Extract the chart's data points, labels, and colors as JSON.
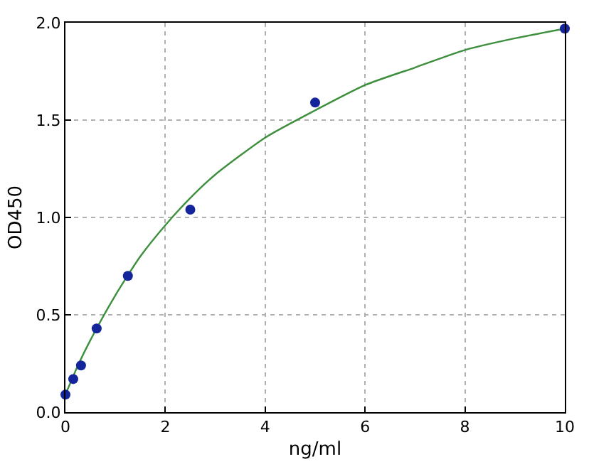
{
  "chart_data": {
    "type": "scatter",
    "xlabel": "ng/ml",
    "ylabel": "OD450",
    "xlim": [
      0,
      10
    ],
    "ylim": [
      0,
      2.0
    ],
    "xticks": [
      0,
      2,
      4,
      6,
      8,
      10
    ],
    "yticks": [
      {
        "value": 0,
        "label": "0.0"
      },
      0.5,
      {
        "value": 1,
        "label": "1.0"
      },
      1.5,
      {
        "value": 2,
        "label": "2.0"
      }
    ],
    "grid": true,
    "legend": false,
    "series": [
      {
        "type": "line",
        "color": "#3d8f3d",
        "marker": "none",
        "line_style": "solid",
        "x": [
          0,
          0.25,
          0.5,
          1,
          1.5,
          2,
          2.5,
          3,
          4,
          5,
          6,
          7,
          8,
          9,
          10
        ],
        "values": [
          0.09,
          0.24,
          0.37,
          0.6,
          0.8,
          0.96,
          1.1,
          1.22,
          1.41,
          1.55,
          1.68,
          1.77,
          1.86,
          1.92,
          1.97
        ]
      },
      {
        "color": "#14249a",
        "marker": "circle",
        "x": [
          0,
          0.156,
          0.312,
          0.625,
          1.25,
          2.5,
          5,
          10
        ],
        "values": [
          0.09,
          0.17,
          0.24,
          0.43,
          0.7,
          1.04,
          1.59,
          1.97
        ]
      }
    ]
  }
}
